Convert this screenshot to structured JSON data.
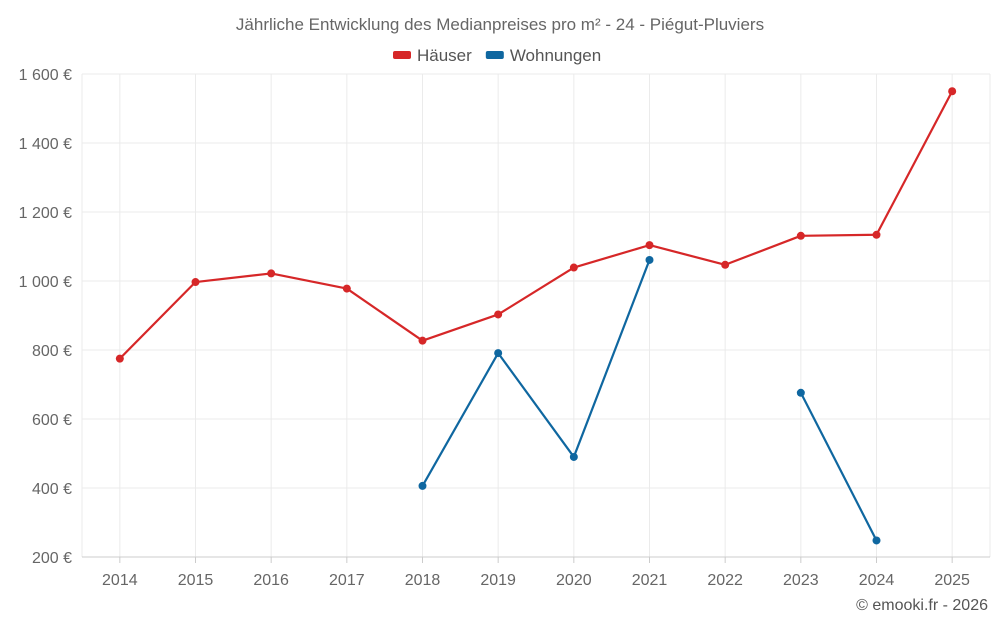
{
  "chart_data": {
    "type": "line",
    "title": "Jährliche Entwicklung des Medianpreises pro m² - 24 - Piégut-Pluviers",
    "categories": [
      "2014",
      "2015",
      "2016",
      "2017",
      "2018",
      "2019",
      "2020",
      "2021",
      "2022",
      "2023",
      "2024",
      "2025"
    ],
    "ylim": [
      200,
      1600
    ],
    "yticks": [
      200,
      400,
      600,
      800,
      1000,
      1200,
      1400,
      1600
    ],
    "ytick_labels": [
      "200 €",
      "400 €",
      "600 €",
      "800 €",
      "1 000 €",
      "1 200 €",
      "1 400 €",
      "1 600 €"
    ],
    "xlabel": "",
    "ylabel": "",
    "grid": true,
    "legend_position": "top-center",
    "series": [
      {
        "name": "Häuser",
        "color": "#d62728",
        "values": [
          775,
          997,
          1022,
          978,
          827,
          903,
          1039,
          1104,
          1047,
          1131,
          1134,
          1550
        ]
      },
      {
        "name": "Wohnungen",
        "color": "#0f67a0",
        "values": [
          null,
          null,
          null,
          null,
          406,
          791,
          490,
          1061,
          null,
          676,
          248,
          null
        ]
      }
    ]
  },
  "credit": "© emooki.fr - 2026"
}
